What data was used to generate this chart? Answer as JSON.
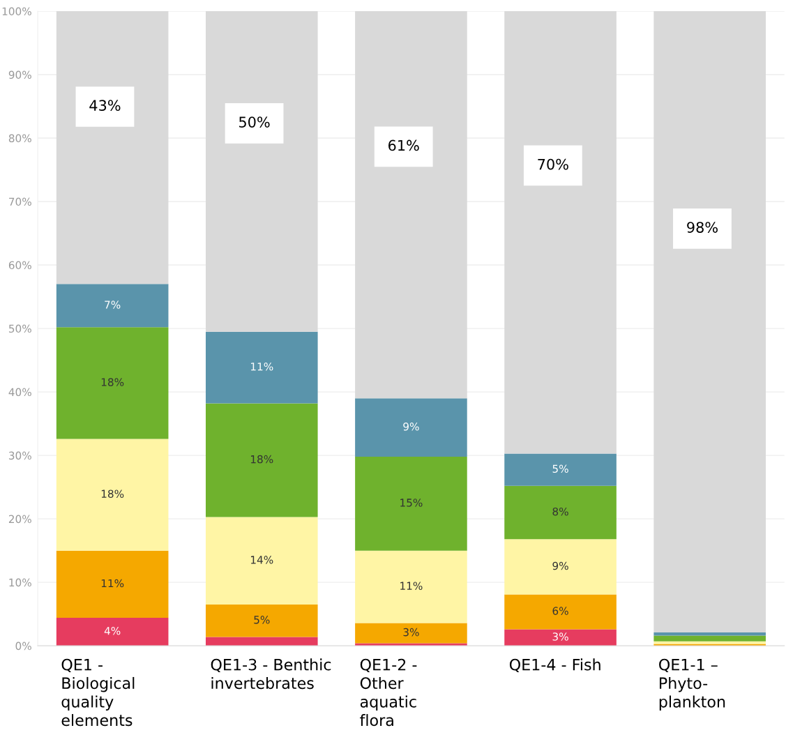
{
  "chart_data": {
    "type": "bar",
    "stacked": true,
    "categories": [
      "QE1 -\nBiological\nquality\nelements",
      "QE1-3 - Benthic\ninvertebrates",
      "QE1-2 -\nOther\naquatic\nflora",
      "QE1-4 - Fish",
      "QE1-1 –\nPhyto-\nplankton"
    ],
    "series": [
      {
        "color": "#e63c5f",
        "values": [
          4.4,
          1.4,
          0.4,
          2.6,
          null
        ],
        "value_labels": [
          "4%",
          null,
          null,
          "3%",
          null
        ]
      },
      {
        "color": "#f5a800",
        "values": [
          10.6,
          5.1,
          3.2,
          5.5,
          0.3
        ],
        "value_labels": [
          "11%",
          "5%",
          "3%",
          "6%",
          null
        ]
      },
      {
        "color": "#fff5a5",
        "values": [
          17.6,
          13.8,
          11.4,
          8.7,
          0.4
        ],
        "value_labels": [
          "18%",
          "14%",
          "11%",
          "9%",
          null
        ]
      },
      {
        "color": "#6fb22d",
        "values": [
          17.6,
          17.9,
          14.8,
          8.4,
          0.9
        ],
        "value_labels": [
          "18%",
          "18%",
          "15%",
          "8%",
          null
        ]
      },
      {
        "color": "#5a94ab",
        "values": [
          6.8,
          11.3,
          9.2,
          5.1,
          0.5
        ],
        "value_labels": [
          "7%",
          "11%",
          "9%",
          "5%",
          null
        ]
      },
      {
        "color": "#d9d9d9",
        "values": [
          43.0,
          50.5,
          61.0,
          69.8,
          97.9
        ],
        "value_labels": [
          "43%",
          "50%",
          "61%",
          "70%",
          "98%"
        ]
      }
    ],
    "ylim": [
      0,
      100
    ],
    "yticks": [
      {
        "value": 0,
        "label": "0%"
      },
      {
        "value": 10,
        "label": "10%"
      },
      {
        "value": 20,
        "label": "20%"
      },
      {
        "value": 30,
        "label": "30%"
      },
      {
        "value": 40,
        "label": "40%"
      },
      {
        "value": 50,
        "label": "50%"
      },
      {
        "value": 60,
        "label": "60%"
      },
      {
        "value": 70,
        "label": "70%"
      },
      {
        "value": 80,
        "label": "80%"
      },
      {
        "value": 90,
        "label": "90%"
      },
      {
        "value": 100,
        "label": "100%"
      }
    ],
    "grid": "y"
  }
}
